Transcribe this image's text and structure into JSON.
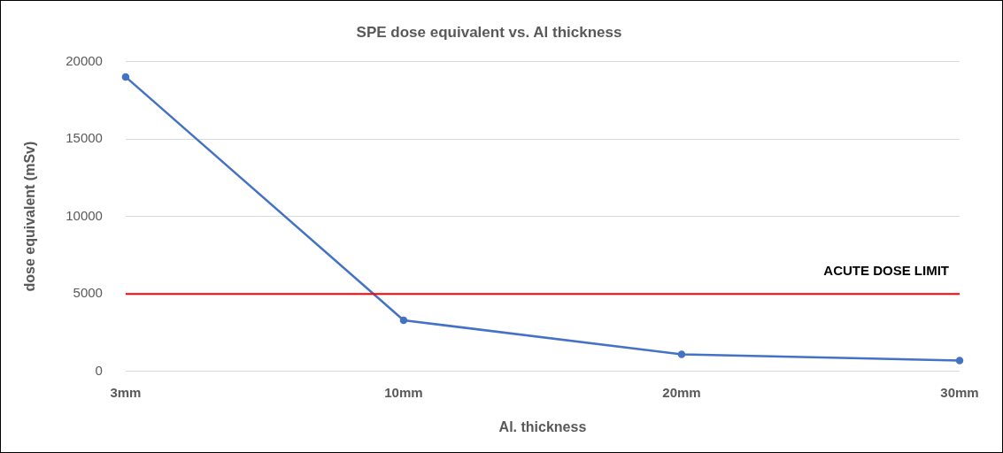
{
  "chart_data": {
    "type": "line",
    "title": "SPE dose equivalent vs. Al thickness",
    "xlabel": "Al. thickness",
    "ylabel": "dose equivalent (mSv)",
    "categories": [
      "3mm",
      "10mm",
      "20mm",
      "30mm"
    ],
    "series": [
      {
        "color": "#4472c4",
        "values": [
          19000,
          3300,
          1100,
          700
        ]
      }
    ],
    "ylim": [
      0,
      20000
    ],
    "yticks": [
      0,
      5000,
      10000,
      15000,
      20000
    ],
    "grid": "y",
    "legend": false,
    "marker": "circle",
    "line_style": "solid",
    "ref_lines": [
      {
        "axis": "y",
        "value": 5000,
        "label": "ACUTE DOSE LIMIT",
        "color": "#ff0000",
        "line_style": "solid"
      }
    ]
  }
}
